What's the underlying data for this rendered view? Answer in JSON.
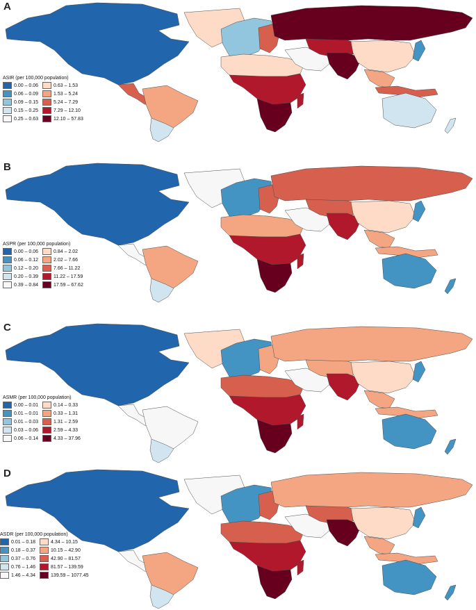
{
  "panels": [
    {
      "label": "A",
      "legend": {
        "title": "ASIR (per 100,000 population)",
        "items": [
          {
            "range": "0.00 – 0.06",
            "color": "#2166ac"
          },
          {
            "range": "0.06 – 0.09",
            "color": "#4393c3"
          },
          {
            "range": "0.09 – 0.15",
            "color": "#92c5de"
          },
          {
            "range": "0.15 – 0.25",
            "color": "#d1e5f0"
          },
          {
            "range": "0.25 – 0.63",
            "color": "#f7f7f7"
          },
          {
            "range": "0.63 – 1.53",
            "color": "#fddbc7"
          },
          {
            "range": "1.53 – 5.24",
            "color": "#f4a582"
          },
          {
            "range": "5.24 – 7.29",
            "color": "#d6604d"
          },
          {
            "range": "7.29 – 12.10",
            "color": "#b2182b"
          },
          {
            "range": "12.10 – 57.83",
            "color": "#67001f"
          }
        ]
      },
      "regions": {
        "north_america": "#2166ac",
        "greenland": "#fddbc7",
        "central_america": "#d6604d",
        "south_america_north": "#f4a582",
        "south_america_south": "#d1e5f0",
        "western_europe": "#92c5de",
        "eastern_europe": "#d6604d",
        "russia": "#67001f",
        "north_africa": "#fddbc7",
        "sub_saharan_africa": "#b2182b",
        "southern_africa": "#67001f",
        "madagascar": "#b2182b",
        "middle_east": "#f7f7f7",
        "central_asia": "#b2182b",
        "south_asia": "#67001f",
        "china": "#fddbc7",
        "southeast_asia": "#f4a582",
        "japan": "#4393c3",
        "indonesia": "#d6604d",
        "australia": "#d1e5f0",
        "new_zealand": "#d1e5f0"
      }
    },
    {
      "label": "B",
      "legend": {
        "title": "ASPR (per 100,000 population)",
        "items": [
          {
            "range": "0.00 – 0.06",
            "color": "#2166ac"
          },
          {
            "range": "0.06 – 0.12",
            "color": "#4393c3"
          },
          {
            "range": "0.12 – 0.20",
            "color": "#92c5de"
          },
          {
            "range": "0.20 – 0.39",
            "color": "#d1e5f0"
          },
          {
            "range": "0.39 – 0.84",
            "color": "#f7f7f7"
          },
          {
            "range": "0.84 – 2.02",
            "color": "#fddbc7"
          },
          {
            "range": "2.02 – 7.66",
            "color": "#f4a582"
          },
          {
            "range": "7.66 – 11.22",
            "color": "#d6604d"
          },
          {
            "range": "11.22 – 17.59",
            "color": "#b2182b"
          },
          {
            "range": "17.59 – 67.62",
            "color": "#67001f"
          }
        ]
      },
      "regions": {
        "north_america": "#2166ac",
        "greenland": "#f7f7f7",
        "central_america": "#f7f7f7",
        "south_america_north": "#f4a582",
        "south_america_south": "#d1e5f0",
        "western_europe": "#4393c3",
        "eastern_europe": "#d6604d",
        "russia": "#d6604d",
        "north_africa": "#f4a582",
        "sub_saharan_africa": "#b2182b",
        "southern_africa": "#67001f",
        "madagascar": "#b2182b",
        "middle_east": "#f7f7f7",
        "central_asia": "#d6604d",
        "south_asia": "#b2182b",
        "china": "#fddbc7",
        "southeast_asia": "#f4a582",
        "japan": "#4393c3",
        "indonesia": "#f4a582",
        "australia": "#4393c3",
        "new_zealand": "#4393c3"
      }
    },
    {
      "label": "C",
      "legend": {
        "title": "ASMR (per 100,000 population)",
        "items": [
          {
            "range": "0.00 – 0.01",
            "color": "#2166ac"
          },
          {
            "range": "0.01 – 0.01",
            "color": "#4393c3"
          },
          {
            "range": "0.01 – 0.03",
            "color": "#92c5de"
          },
          {
            "range": "0.03 – 0.06",
            "color": "#d1e5f0"
          },
          {
            "range": "0.06 – 0.14",
            "color": "#f7f7f7"
          },
          {
            "range": "0.14 – 0.33",
            "color": "#fddbc7"
          },
          {
            "range": "0.33 – 1.31",
            "color": "#f4a582"
          },
          {
            "range": "1.31 – 2.59",
            "color": "#d6604d"
          },
          {
            "range": "2.59 – 4.33",
            "color": "#b2182b"
          },
          {
            "range": "4.33 – 37.96",
            "color": "#67001f"
          }
        ]
      },
      "regions": {
        "north_america": "#2166ac",
        "greenland": "#fddbc7",
        "central_america": "#f7f7f7",
        "south_america_north": "#f7f7f7",
        "south_america_south": "#d1e5f0",
        "western_europe": "#4393c3",
        "eastern_europe": "#f4a582",
        "russia": "#f4a582",
        "north_africa": "#d6604d",
        "sub_saharan_africa": "#b2182b",
        "southern_africa": "#67001f",
        "madagascar": "#b2182b",
        "middle_east": "#f7f7f7",
        "central_asia": "#f4a582",
        "south_asia": "#b2182b",
        "china": "#fddbc7",
        "southeast_asia": "#f4a582",
        "japan": "#4393c3",
        "indonesia": "#f4a582",
        "australia": "#4393c3",
        "new_zealand": "#4393c3"
      }
    },
    {
      "label": "D",
      "legend": {
        "title": "ASDR (per 100,000 population)",
        "items": [
          {
            "range": "0.01 – 0.18",
            "color": "#2166ac"
          },
          {
            "range": "0.18 – 0.37",
            "color": "#4393c3"
          },
          {
            "range": "0.37 – 0.76",
            "color": "#92c5de"
          },
          {
            "range": "0.76 – 1.46",
            "color": "#d1e5f0"
          },
          {
            "range": "1.46 – 4.34",
            "color": "#f7f7f7"
          },
          {
            "range": "4.34 – 10.15",
            "color": "#fddbc7"
          },
          {
            "range": "10.15 – 42.90",
            "color": "#f4a582"
          },
          {
            "range": "42.90 – 81.57",
            "color": "#d6604d"
          },
          {
            "range": "81.57 – 139.59",
            "color": "#b2182b"
          },
          {
            "range": "139.59 – 1077.45",
            "color": "#67001f"
          }
        ]
      },
      "regions": {
        "north_america": "#2166ac",
        "greenland": "#f7f7f7",
        "central_america": "#f7f7f7",
        "south_america_north": "#f4a582",
        "south_america_south": "#d1e5f0",
        "western_europe": "#4393c3",
        "eastern_europe": "#d6604d",
        "russia": "#f4a582",
        "north_africa": "#d6604d",
        "sub_saharan_africa": "#b2182b",
        "southern_africa": "#67001f",
        "madagascar": "#b2182b",
        "middle_east": "#f7f7f7",
        "central_asia": "#d6604d",
        "south_asia": "#67001f",
        "china": "#fddbc7",
        "southeast_asia": "#f4a582",
        "japan": "#4393c3",
        "indonesia": "#f4a582",
        "australia": "#4393c3",
        "new_zealand": "#4393c3"
      }
    }
  ]
}
